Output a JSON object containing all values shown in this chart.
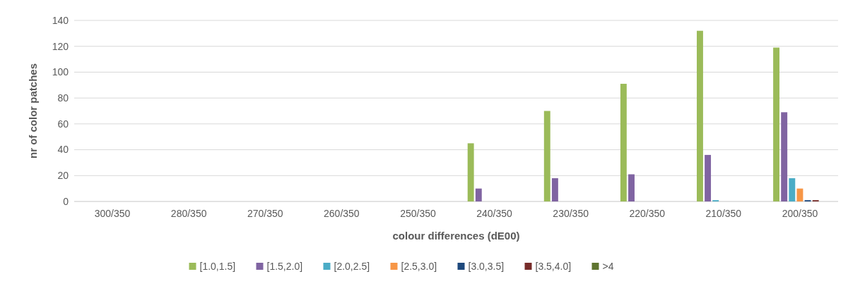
{
  "chart_data": {
    "type": "bar",
    "xlabel": "colour differences (dE00)",
    "ylabel": "nr of color patches",
    "categories": [
      "300/350",
      "280/350",
      "270/350",
      "260/350",
      "250/350",
      "240/350",
      "230/350",
      "220/350",
      "210/350",
      "200/350"
    ],
    "series": [
      {
        "name": "[1.0,1.5]",
        "color": "#9bbb59",
        "values": [
          0,
          0,
          0,
          0,
          0,
          45,
          70,
          91,
          132,
          119
        ]
      },
      {
        "name": "[1.5,2.0]",
        "color": "#8064a2",
        "values": [
          0,
          0,
          0,
          0,
          0,
          10,
          18,
          21,
          36,
          69
        ]
      },
      {
        "name": "[2.0,2.5]",
        "color": "#4bacc6",
        "values": [
          0,
          0,
          0,
          0,
          0,
          0,
          0,
          0,
          1,
          18
        ]
      },
      {
        "name": "[2.5,3.0]",
        "color": "#f79646",
        "values": [
          0,
          0,
          0,
          0,
          0,
          0,
          0,
          0,
          0,
          10
        ]
      },
      {
        "name": "[3.0,3.5]",
        "color": "#1f497d",
        "values": [
          0,
          0,
          0,
          0,
          0,
          0,
          0,
          0,
          0,
          1
        ]
      },
      {
        "name": "[3.5,4.0]",
        "color": "#772c2a",
        "values": [
          0,
          0,
          0,
          0,
          0,
          0,
          0,
          0,
          0,
          1
        ]
      },
      {
        "name": ">4",
        "color": "#5f7530",
        "values": [
          0,
          0,
          0,
          0,
          0,
          0,
          0,
          0,
          0,
          0
        ]
      }
    ],
    "ylim": [
      0,
      140
    ],
    "yticks": [
      0,
      20,
      40,
      60,
      80,
      100,
      120,
      140
    ],
    "grid": "y",
    "legend": "bottom"
  }
}
